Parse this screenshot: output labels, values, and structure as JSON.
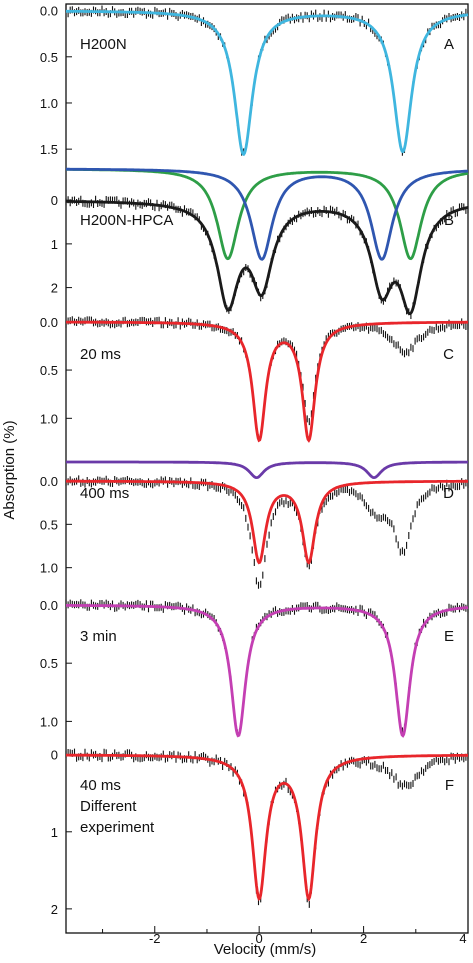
{
  "chart_data": {
    "type": "line",
    "xlabel": "Velocity (mm/s)",
    "ylabel": "Absorption (%)",
    "xlim": [
      -3.7,
      4
    ],
    "xticks": [
      -2,
      0,
      2,
      4
    ],
    "grid": false,
    "panels": [
      {
        "letter": "A",
        "label_lines": [
          "H200N"
        ],
        "ylim": [
          -0.05,
          1.65
        ],
        "yticks": [
          "0.0",
          "0.5",
          "1.0",
          "1.5"
        ],
        "yticks_values": [
          0.0,
          0.5,
          1.0,
          1.5
        ],
        "data_peaks": [
          {
            "x": -0.3,
            "depth": 1.55,
            "w": 0.42
          },
          {
            "x": 2.75,
            "depth": 1.52,
            "w": 0.42
          }
        ],
        "fits": [
          {
            "color": "#3fb6df",
            "peaks": [
              {
                "x": -0.3,
                "depth": 1.55,
                "w": 0.42
              },
              {
                "x": 2.75,
                "depth": 1.52,
                "w": 0.42
              }
            ]
          }
        ]
      },
      {
        "letter": "B",
        "label_lines": [
          "H200N-HPCA"
        ],
        "ylim": [
          -0.85,
          2.65
        ],
        "yticks": [
          "0",
          "1",
          "2"
        ],
        "yticks_values": [
          0,
          1,
          2
        ],
        "data_peaks": [
          {
            "x": -0.6,
            "depth": 2.25,
            "w": 0.5
          },
          {
            "x": 0.05,
            "depth": 1.85,
            "w": 0.5
          },
          {
            "x": 2.35,
            "depth": 1.85,
            "w": 0.5
          },
          {
            "x": 2.9,
            "depth": 2.25,
            "w": 0.5
          }
        ],
        "fits": [
          {
            "color": "#1a1a1a",
            "peaks": [
              {
                "x": -0.6,
                "depth": 2.25,
                "w": 0.5
              },
              {
                "x": 0.05,
                "depth": 1.85,
                "w": 0.5
              },
              {
                "x": 2.35,
                "depth": 1.85,
                "w": 0.5
              },
              {
                "x": 2.9,
                "depth": 2.25,
                "w": 0.5
              }
            ]
          },
          {
            "color": "#2e9e47",
            "offset": -0.72,
            "peaks": [
              {
                "x": -0.6,
                "depth": 2.05,
                "w": 0.5
              },
              {
                "x": 2.9,
                "depth": 2.05,
                "w": 0.5
              }
            ]
          },
          {
            "color": "#2f56b0",
            "offset": -0.72,
            "peaks": [
              {
                "x": 0.05,
                "depth": 2.05,
                "w": 0.5
              },
              {
                "x": 2.35,
                "depth": 2.05,
                "w": 0.5
              }
            ]
          }
        ]
      },
      {
        "letter": "C",
        "label_lines": [
          "20 ms"
        ],
        "ylim": [
          -0.06,
          1.38
        ],
        "yticks": [
          "0.0",
          "0.5",
          "1.0"
        ],
        "yticks_values": [
          0.0,
          0.5,
          1.0
        ],
        "data_peaks": [
          {
            "x": 0.0,
            "depth": 1.2,
            "w": 0.3
          },
          {
            "x": 0.95,
            "depth": 1.0,
            "w": 0.3
          },
          {
            "x": 2.8,
            "depth": 0.3,
            "w": 0.6
          }
        ],
        "fits": [
          {
            "color": "#e8262b",
            "peaks": [
              {
                "x": 0.0,
                "depth": 1.2,
                "w": 0.3
              },
              {
                "x": 0.95,
                "depth": 1.2,
                "w": 0.3
              }
            ]
          }
        ]
      },
      {
        "letter": "D",
        "label_lines": [
          "400 ms"
        ],
        "ylim": [
          -0.3,
          1.35
        ],
        "yticks": [
          "0.0",
          "0.5",
          "1.0"
        ],
        "yticks_values": [
          0.0,
          0.5,
          1.0
        ],
        "data_peaks": [
          {
            "x": 0.0,
            "depth": 1.2,
            "w": 0.35
          },
          {
            "x": 0.95,
            "depth": 0.95,
            "w": 0.3
          },
          {
            "x": 2.25,
            "depth": 0.3,
            "w": 0.5
          },
          {
            "x": 2.75,
            "depth": 0.75,
            "w": 0.4
          }
        ],
        "fits": [
          {
            "color": "#e8262b",
            "peaks": [
              {
                "x": 0.0,
                "depth": 0.92,
                "w": 0.3
              },
              {
                "x": 0.95,
                "depth": 0.92,
                "w": 0.3
              }
            ]
          },
          {
            "color": "#6a3aa8",
            "offset": -0.22,
            "peaks": [
              {
                "x": -0.05,
                "depth": 0.18,
                "w": 0.35
              },
              {
                "x": 2.2,
                "depth": 0.18,
                "w": 0.35
              }
            ]
          }
        ]
      },
      {
        "letter": "E",
        "label_lines": [
          "3 min"
        ],
        "ylim": [
          -0.06,
          1.22
        ],
        "yticks": [
          "0.0",
          "0.5",
          "1.0"
        ],
        "yticks_values": [
          0.0,
          0.5,
          1.0
        ],
        "data_peaks": [
          {
            "x": -0.4,
            "depth": 1.1,
            "w": 0.34
          },
          {
            "x": 2.75,
            "depth": 1.1,
            "w": 0.34
          }
        ],
        "fits": [
          {
            "color": "#c43fb3",
            "peaks": [
              {
                "x": -0.4,
                "depth": 1.12,
                "w": 0.34
              },
              {
                "x": 2.75,
                "depth": 1.12,
                "w": 0.34
              }
            ]
          }
        ]
      },
      {
        "letter": "F",
        "label_lines": [
          "40 ms",
          "Different",
          "experiment"
        ],
        "ylim": [
          -0.1,
          2.3
        ],
        "yticks": [
          "0",
          "1",
          "2"
        ],
        "yticks_values": [
          0,
          1,
          2
        ],
        "data_peaks": [
          {
            "x": 0.0,
            "depth": 1.85,
            "w": 0.32
          },
          {
            "x": 0.95,
            "depth": 1.85,
            "w": 0.32
          },
          {
            "x": 2.8,
            "depth": 0.4,
            "w": 0.6
          }
        ],
        "fits": [
          {
            "color": "#e8262b",
            "peaks": [
              {
                "x": 0.0,
                "depth": 1.82,
                "w": 0.32
              },
              {
                "x": 0.95,
                "depth": 1.82,
                "w": 0.32
              }
            ]
          }
        ]
      }
    ]
  }
}
